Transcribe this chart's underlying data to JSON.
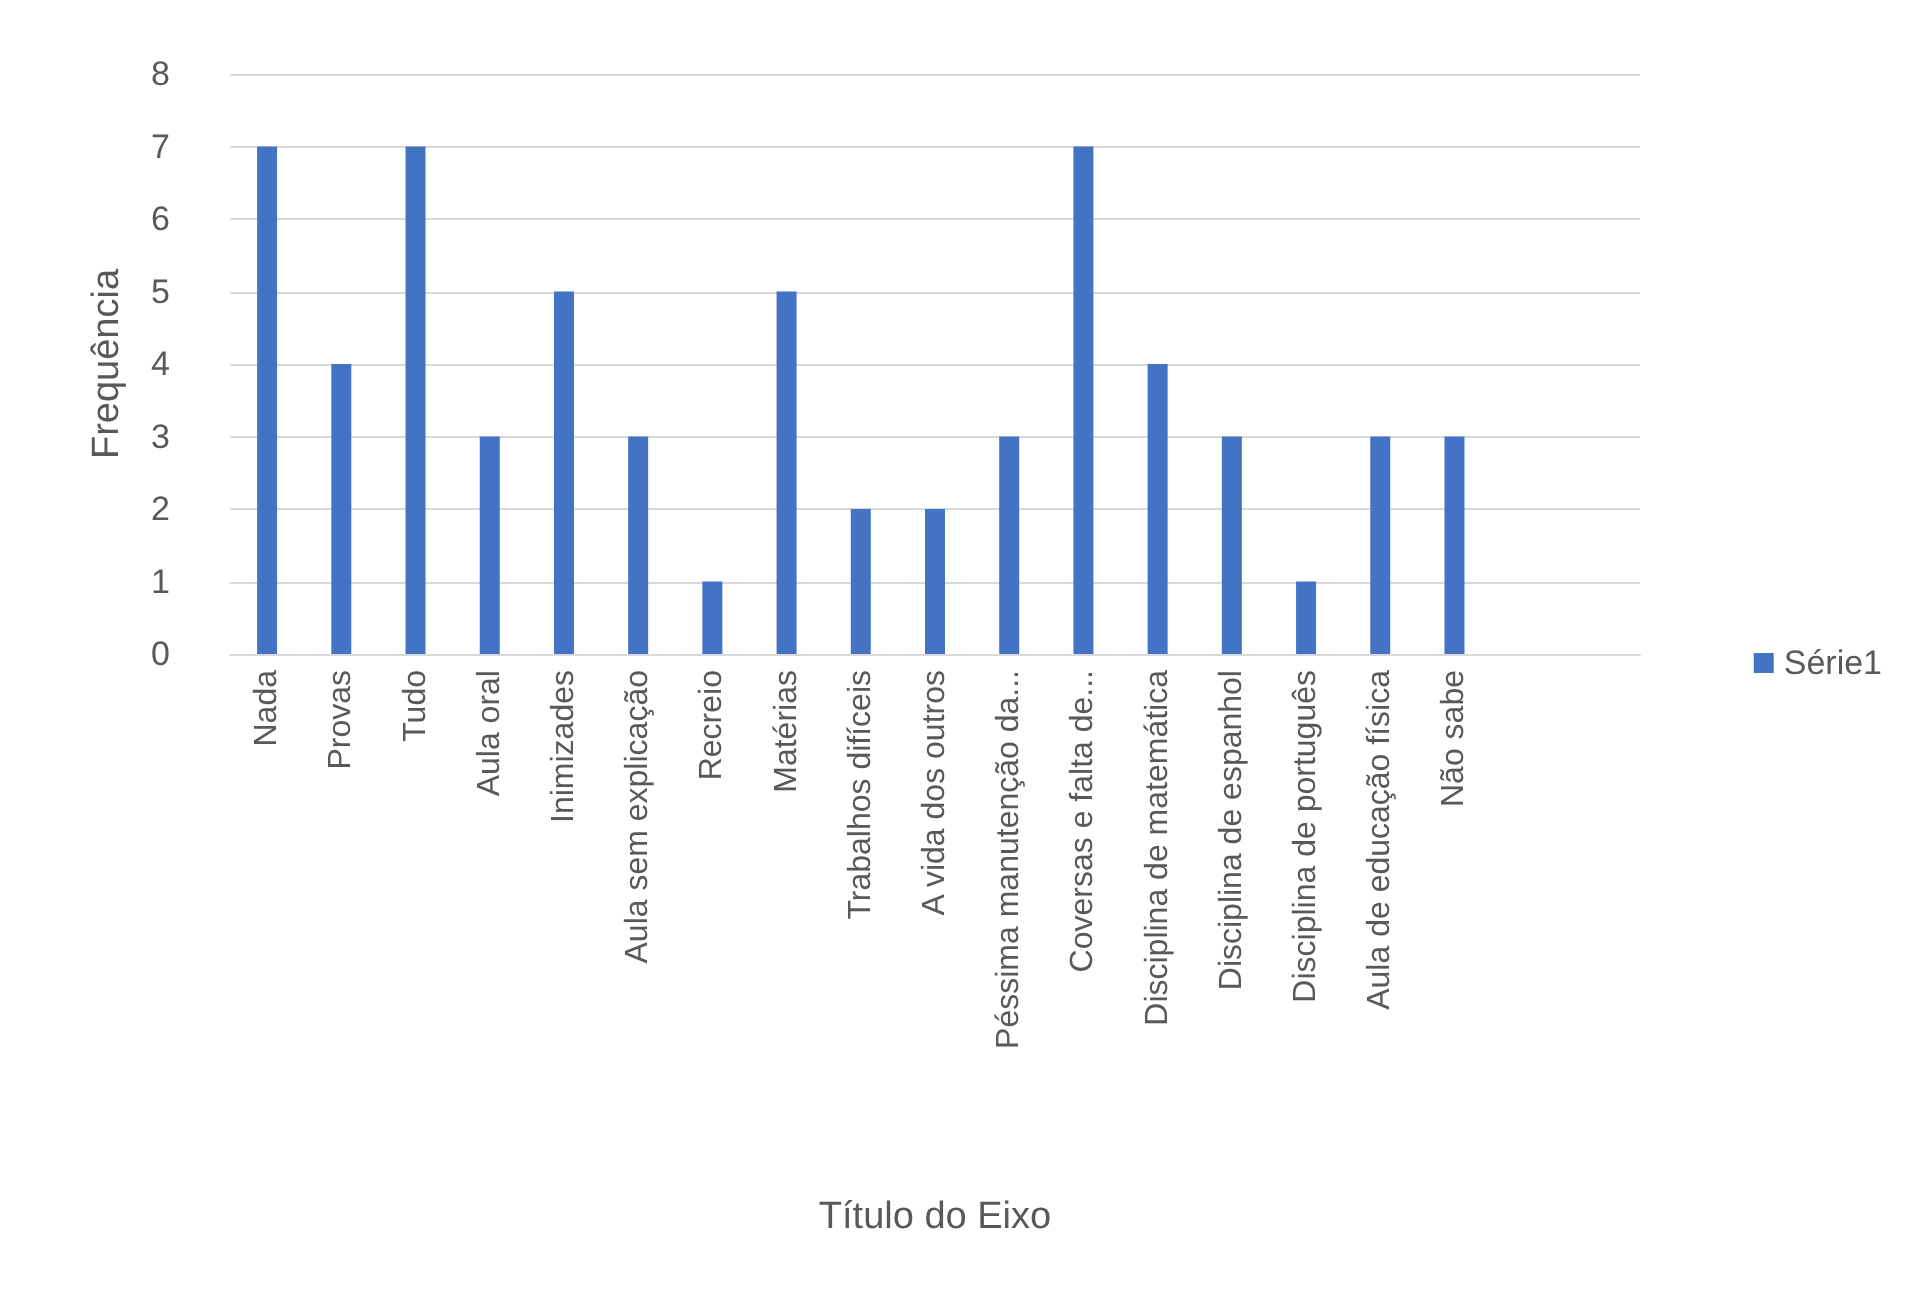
{
  "chart_data": {
    "type": "bar",
    "xlabel": "Título do Eixo",
    "ylabel": "Frequência",
    "categories": [
      "Nada",
      "Provas",
      "Tudo",
      "Aula oral",
      "Inimizades",
      "Aula sem explicação",
      "Recreio",
      "Matérias",
      "Trabalhos difíceis",
      "A vida dos outros",
      "Péssima manutenção da...",
      "Coversas e falta de...",
      "Disciplina de matemática",
      "Disciplina de espanhol",
      "Disciplina de português",
      "Aula de educação física",
      "Não sabe",
      null,
      null
    ],
    "series": [
      {
        "name": "Série1",
        "color": "#4472c4",
        "values": [
          7,
          4,
          7,
          3,
          5,
          3,
          1,
          5,
          2,
          2,
          3,
          7,
          4,
          3,
          1,
          3,
          3,
          null,
          null
        ]
      }
    ],
    "ylim": [
      0,
      8
    ],
    "yticks": [
      0,
      1,
      2,
      3,
      4,
      5,
      6,
      7,
      8
    ],
    "grid": "y",
    "legend": "right"
  }
}
